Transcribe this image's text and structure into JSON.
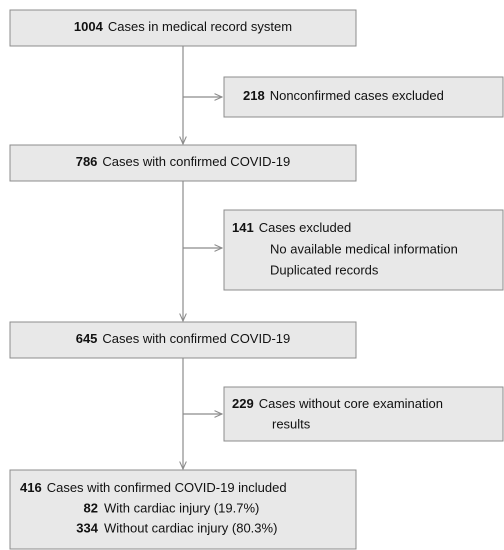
{
  "nodes": [
    {
      "count": 1004,
      "lines": [
        "Cases in medical record system"
      ]
    },
    {
      "count": 218,
      "lines": [
        "Nonconfirmed cases excluded"
      ]
    },
    {
      "count": 786,
      "lines": [
        "Cases with confirmed COVID-19"
      ]
    },
    {
      "count": 141,
      "lines": [
        "Cases excluded",
        "No available medical information",
        "Duplicated records"
      ]
    },
    {
      "count": 645,
      "lines": [
        "Cases with confirmed COVID-19"
      ]
    },
    {
      "count": 229,
      "lines": [
        "Cases without core examination",
        "results"
      ]
    },
    {
      "count": 416,
      "lines": [
        "Cases with confirmed COVID-19 included"
      ],
      "items": [
        {
          "count": 82,
          "label": "With cardiac injury (19.7%)"
        },
        {
          "count": 334,
          "label": "Without cardiac injury (80.3%)"
        }
      ]
    }
  ]
}
